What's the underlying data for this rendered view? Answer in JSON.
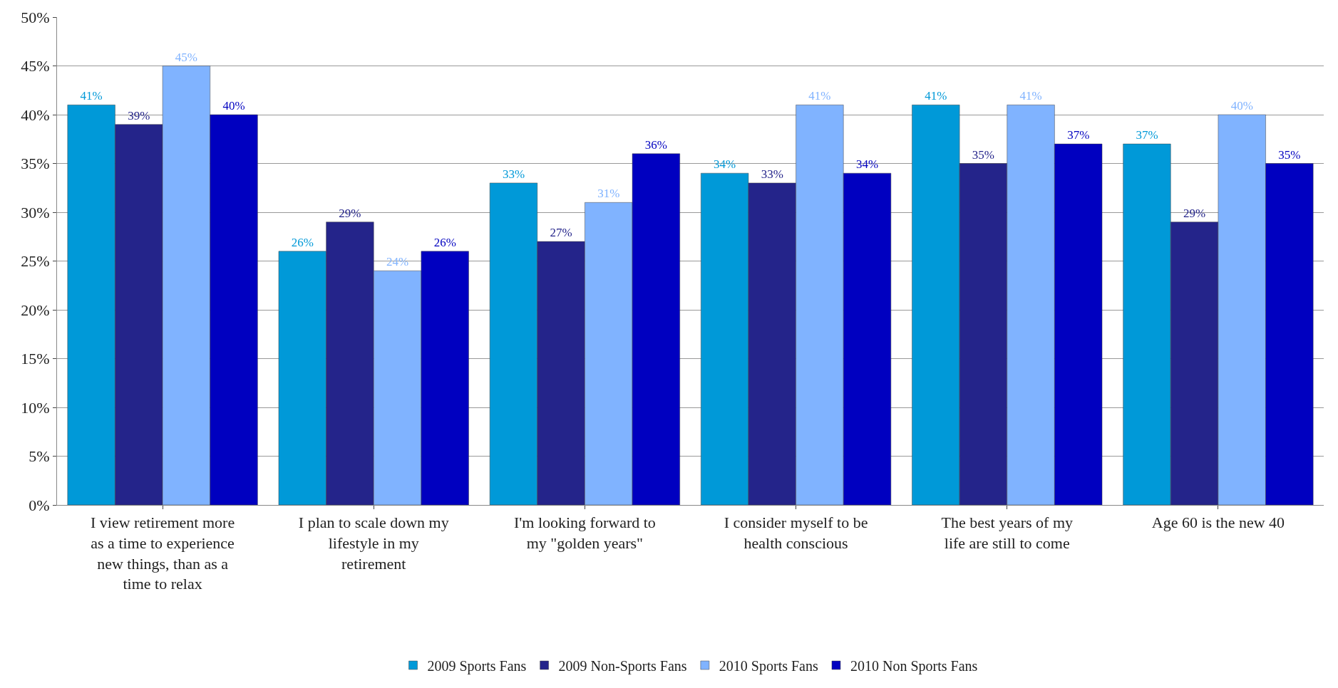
{
  "chart_data": {
    "type": "bar",
    "categories": [
      "I view retirement more as a time to experience new things, than as a time to relax",
      "I plan to scale down my lifestyle in my retirement",
      "I'm looking forward to my \"golden years\"",
      "I consider myself to be health conscious",
      "The best years of my life are still to come",
      "Age 60 is the new 40"
    ],
    "series": [
      {
        "name": "2009 Sports Fans",
        "color": "#0099d8",
        "values": [
          41,
          26,
          33,
          34,
          41,
          37
        ],
        "value_labels": [
          "41%",
          "26%",
          "33%",
          "34%",
          "41%",
          "37%"
        ]
      },
      {
        "name": "2009 Non-Sports Fans",
        "color": "#24248a",
        "values": [
          39,
          29,
          27,
          33,
          35,
          29
        ],
        "value_labels": [
          "39%",
          "29%",
          "27%",
          "33%",
          "35%",
          "29%"
        ]
      },
      {
        "name": "2010 Sports Fans",
        "color": "#80b3ff",
        "values": [
          45,
          24,
          31,
          41,
          41,
          40
        ],
        "value_labels": [
          "45%",
          "24%",
          "31%",
          "41%",
          "41%",
          "40%"
        ]
      },
      {
        "name": "2010 Non Sports Fans",
        "color": "#0000c0",
        "values": [
          40,
          26,
          36,
          34,
          37,
          35
        ],
        "value_labels": [
          "40%",
          "26%",
          "36%",
          "34%",
          "37%",
          "35%"
        ]
      }
    ],
    "ylim": [
      0,
      50
    ],
    "yticks": [
      {
        "value": 0,
        "label": "0%"
      },
      {
        "value": 5,
        "label": "5%"
      },
      {
        "value": 10,
        "label": "10%"
      },
      {
        "value": 15,
        "label": "15%"
      },
      {
        "value": 20,
        "label": "20%"
      },
      {
        "value": 25,
        "label": "25%"
      },
      {
        "value": 30,
        "label": "30%"
      },
      {
        "value": 35,
        "label": "35%"
      },
      {
        "value": 40,
        "label": "40%"
      },
      {
        "value": 45,
        "label": "45%"
      },
      {
        "value": 50,
        "label": "50%"
      }
    ],
    "grid": "y",
    "legend": "bottom"
  }
}
